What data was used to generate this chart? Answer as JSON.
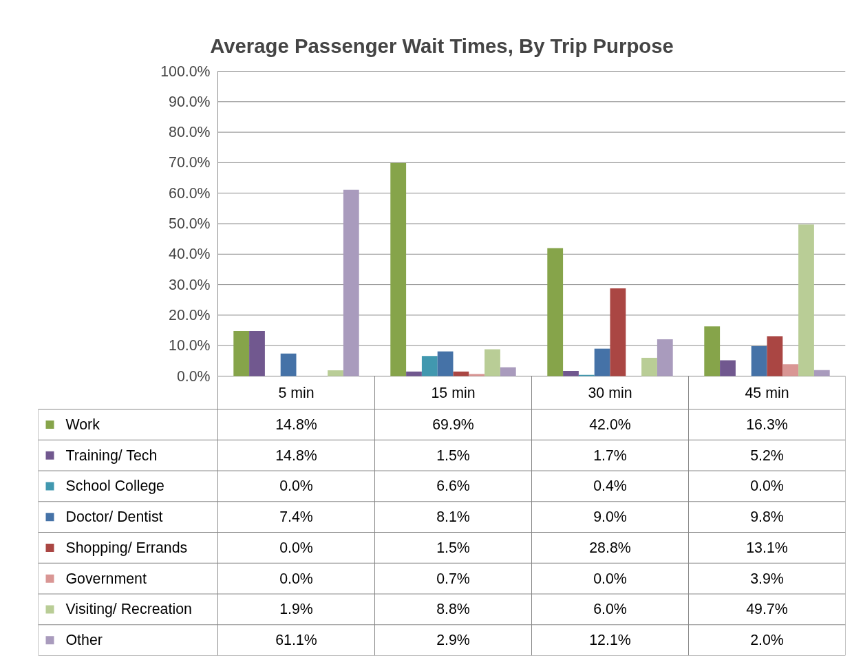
{
  "chart_data": {
    "type": "bar",
    "title": "Average Passenger Wait Times, By Trip Purpose",
    "categories": [
      "5 min",
      "15 min",
      "30 min",
      "45 min"
    ],
    "ylim": [
      0,
      100
    ],
    "yticks": [
      {
        "value": 0,
        "label": "0.0%"
      },
      {
        "value": 10,
        "label": "10.0%"
      },
      {
        "value": 20,
        "label": "20.0%"
      },
      {
        "value": 30,
        "label": "30.0%"
      },
      {
        "value": 40,
        "label": "40.0%"
      },
      {
        "value": 50,
        "label": "50.0%"
      },
      {
        "value": 60,
        "label": "60.0%"
      },
      {
        "value": 70,
        "label": "70.0%"
      },
      {
        "value": 80,
        "label": "80.0%"
      },
      {
        "value": 90,
        "label": "90.0%"
      },
      {
        "value": 100,
        "label": "100.0%"
      }
    ],
    "grid": "y",
    "legend": "bottom",
    "data_labels": true,
    "series": [
      {
        "name": "Work",
        "color": "#86a44a",
        "values": [
          14.8,
          69.9,
          42.0,
          16.3
        ],
        "value_labels": [
          "14.8%",
          "69.9%",
          "42.0%",
          "16.3%"
        ]
      },
      {
        "name": "Training/ Tech",
        "color": "#71588f",
        "values": [
          14.8,
          1.5,
          1.7,
          5.2
        ],
        "value_labels": [
          "14.8%",
          "1.5%",
          "1.7%",
          "5.2%"
        ]
      },
      {
        "name": "School College",
        "color": "#4198af",
        "values": [
          0.0,
          6.6,
          0.4,
          0.0
        ],
        "value_labels": [
          "0.0%",
          "6.6%",
          "0.4%",
          "0.0%"
        ]
      },
      {
        "name": "Doctor/ Dentist",
        "color": "#4572a7",
        "values": [
          7.4,
          8.1,
          9.0,
          9.8
        ],
        "value_labels": [
          "7.4%",
          "8.1%",
          "9.0%",
          "9.8%"
        ]
      },
      {
        "name": "Shopping/ Errands",
        "color": "#aa4643",
        "values": [
          0.0,
          1.5,
          28.8,
          13.1
        ],
        "value_labels": [
          "0.0%",
          "1.5%",
          "28.8%",
          "13.1%"
        ]
      },
      {
        "name": "Government",
        "color": "#d99694",
        "values": [
          0.0,
          0.7,
          0.0,
          3.9
        ],
        "value_labels": [
          "0.0%",
          "0.7%",
          "0.0%",
          "3.9%"
        ]
      },
      {
        "name": "Visiting/ Recreation",
        "color": "#b9cd96",
        "values": [
          1.9,
          8.8,
          6.0,
          49.7
        ],
        "value_labels": [
          "1.9%",
          "8.8%",
          "6.0%",
          "49.7%"
        ]
      },
      {
        "name": "Other",
        "color": "#a99bbd",
        "values": [
          61.1,
          2.9,
          12.1,
          2.0
        ],
        "value_labels": [
          "61.1%",
          "2.9%",
          "12.1%",
          "2.0%"
        ]
      }
    ]
  }
}
